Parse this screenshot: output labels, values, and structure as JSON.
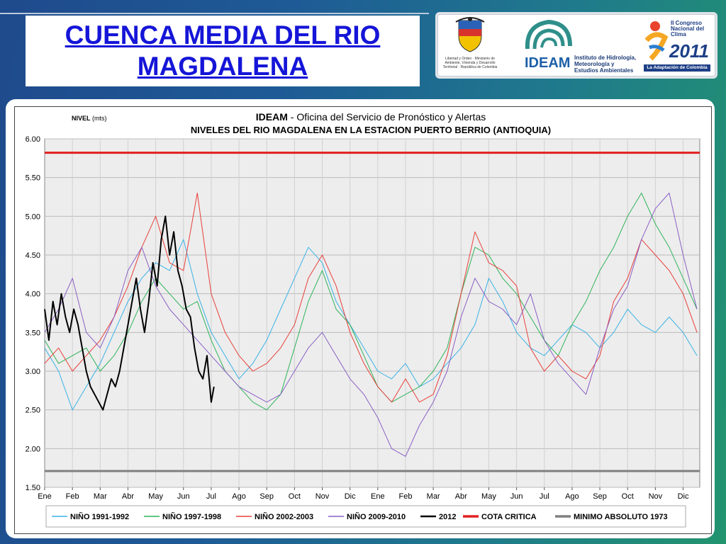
{
  "slide": {
    "title_line1": "CUENCA MEDIA DEL RIO",
    "title_line2": "MAGDALENA",
    "logo_minambiente_text": "Libertad y Orden · Ministerio de Ambiente, Vivienda y Desarrollo Territorial · República de Colombia",
    "logo_ideam_word": "IDEAM",
    "logo_ideam_desc": "Instituto de Hidrología, Meteorología y Estudios Ambientales",
    "logo_congreso_text": "II Congreso Nacional del Clima",
    "logo_congreso_year": "2011",
    "logo_congreso_ribbon": "La Adaptación de Colombia"
  },
  "chart_data": {
    "type": "line",
    "title_prefix": "IDEAM",
    "title_rest": " - Oficina del Servicio de Pronóstico y Alertas",
    "subtitle": "NIVELES DEL RIO MAGDALENA EN LA ESTACION PUERTO BERRIO (ANTIOQUIA)",
    "ylabel_main": "NIVEL",
    "ylabel_unit": " (mts)",
    "ylim": [
      1.5,
      6.0
    ],
    "yticks": [
      "6.00",
      "5.50",
      "5.00",
      "4.50",
      "4.00",
      "3.50",
      "3.00",
      "2.50",
      "2.00",
      "1.50"
    ],
    "x_months": [
      "Ene",
      "Feb",
      "Mar",
      "Abr",
      "May",
      "Jun",
      "Jul",
      "Ago",
      "Sep",
      "Oct",
      "Nov",
      "Dic",
      "Ene",
      "Feb",
      "Mar",
      "Abr",
      "May",
      "Jun",
      "Jul",
      "Ago",
      "Sep",
      "Oct",
      "Nov",
      "Dic"
    ],
    "x_range_months": [
      0,
      23.6
    ],
    "grid": true,
    "legend_position": "bottom",
    "reference_lines": [
      {
        "name": "COTA CRITICA",
        "value": 5.82,
        "color": "#e02020"
      },
      {
        "name": "MINIMO ABSOLUTO 1973",
        "value": 1.71,
        "color": "#808080"
      }
    ],
    "series": [
      {
        "name": "NIÑO 1991-1992",
        "color": "#3ab2e6",
        "width": 1,
        "x": [
          0,
          0.5,
          1,
          1.5,
          2,
          2.5,
          3,
          3.5,
          4,
          4.5,
          5,
          5.5,
          6,
          6.5,
          7,
          7.5,
          8,
          8.5,
          9,
          9.5,
          10,
          10.5,
          11,
          11.5,
          12,
          12.5,
          13,
          13.5,
          14,
          14.5,
          15,
          15.5,
          16,
          16.5,
          17,
          17.5,
          18,
          18.5,
          19,
          19.5,
          20,
          20.5,
          21,
          21.5,
          22,
          22.5,
          23,
          23.5
        ],
        "y": [
          3.3,
          3.0,
          2.5,
          2.8,
          3.1,
          3.5,
          3.9,
          4.2,
          4.4,
          4.3,
          4.7,
          4.0,
          3.5,
          3.2,
          2.9,
          3.1,
          3.4,
          3.8,
          4.2,
          4.6,
          4.4,
          3.9,
          3.6,
          3.3,
          3.0,
          2.9,
          3.1,
          2.8,
          2.9,
          3.1,
          3.3,
          3.6,
          4.2,
          3.9,
          3.5,
          3.3,
          3.2,
          3.4,
          3.6,
          3.5,
          3.3,
          3.5,
          3.8,
          3.6,
          3.5,
          3.7,
          3.5,
          3.2
        ]
      },
      {
        "name": "NIÑO 1997-1998",
        "color": "#2fb35a",
        "width": 1,
        "x": [
          0,
          0.5,
          1,
          1.5,
          2,
          2.5,
          3,
          3.5,
          4,
          4.5,
          5,
          5.5,
          6,
          6.5,
          7,
          7.5,
          8,
          8.5,
          9,
          9.5,
          10,
          10.5,
          11,
          11.5,
          12,
          12.5,
          13,
          13.5,
          14,
          14.5,
          15,
          15.5,
          16,
          16.5,
          17,
          17.5,
          18,
          18.5,
          19,
          19.5,
          20,
          20.5,
          21,
          21.5,
          22,
          22.5,
          23,
          23.5
        ],
        "y": [
          3.4,
          3.1,
          3.2,
          3.3,
          3.0,
          3.2,
          3.5,
          3.9,
          4.2,
          4.0,
          3.8,
          3.9,
          3.4,
          3.0,
          2.8,
          2.6,
          2.5,
          2.7,
          3.3,
          3.9,
          4.3,
          3.8,
          3.6,
          3.2,
          2.8,
          2.6,
          2.7,
          2.8,
          3.0,
          3.3,
          4.0,
          4.6,
          4.5,
          4.2,
          4.0,
          3.7,
          3.4,
          3.2,
          3.6,
          3.9,
          4.3,
          4.6,
          5.0,
          5.3,
          4.9,
          4.6,
          4.2,
          3.8
        ]
      },
      {
        "name": "NIÑO 2002-2003",
        "color": "#e8403a",
        "width": 1,
        "x": [
          0,
          0.5,
          1,
          1.5,
          2,
          2.5,
          3,
          3.5,
          4,
          4.5,
          5,
          5.5,
          6,
          6.5,
          7,
          7.5,
          8,
          8.5,
          9,
          9.5,
          10,
          10.5,
          11,
          11.5,
          12,
          12.5,
          13,
          13.5,
          14,
          14.5,
          15,
          15.5,
          16,
          16.5,
          17,
          17.5,
          18,
          18.5,
          19,
          19.5,
          20,
          20.5,
          21,
          21.5,
          22,
          22.5,
          23,
          23.5
        ],
        "y": [
          3.1,
          3.3,
          3.0,
          3.2,
          3.4,
          3.7,
          4.1,
          4.6,
          5.0,
          4.4,
          4.3,
          5.3,
          4.0,
          3.5,
          3.2,
          3.0,
          3.1,
          3.3,
          3.6,
          4.2,
          4.5,
          4.1,
          3.5,
          3.1,
          2.8,
          2.6,
          2.9,
          2.6,
          2.7,
          3.2,
          4.0,
          4.8,
          4.4,
          4.3,
          4.1,
          3.3,
          3.0,
          3.2,
          3.0,
          2.9,
          3.2,
          3.9,
          4.2,
          4.7,
          4.5,
          4.3,
          4.0,
          3.5
        ]
      },
      {
        "name": "NIÑO 2009-2010",
        "color": "#8a5fc4",
        "width": 1,
        "x": [
          0,
          0.5,
          1,
          1.5,
          2,
          2.5,
          3,
          3.5,
          4,
          4.5,
          5,
          5.5,
          6,
          6.5,
          7,
          7.5,
          8,
          8.5,
          9,
          9.5,
          10,
          10.5,
          11,
          11.5,
          12,
          12.5,
          13,
          13.5,
          14,
          14.5,
          15,
          15.5,
          16,
          16.5,
          17,
          17.5,
          18,
          18.5,
          19,
          19.5,
          20,
          20.5,
          21,
          21.5,
          22,
          22.5,
          23,
          23.5
        ],
        "y": [
          3.5,
          3.8,
          4.2,
          3.5,
          3.3,
          3.7,
          4.3,
          4.6,
          4.1,
          3.8,
          3.6,
          3.4,
          3.2,
          3.0,
          2.8,
          2.7,
          2.6,
          2.7,
          3.0,
          3.3,
          3.5,
          3.2,
          2.9,
          2.7,
          2.4,
          2.0,
          1.9,
          2.3,
          2.6,
          3.0,
          3.7,
          4.2,
          3.9,
          3.8,
          3.6,
          4.0,
          3.4,
          3.1,
          2.9,
          2.7,
          3.3,
          3.8,
          4.1,
          4.7,
          5.1,
          5.3,
          4.5,
          3.8
        ]
      },
      {
        "name": "2012",
        "color": "#000000",
        "width": 2,
        "x": [
          0,
          0.15,
          0.3,
          0.45,
          0.6,
          0.75,
          0.9,
          1.05,
          1.2,
          1.35,
          1.5,
          1.65,
          1.8,
          1.95,
          2.1,
          2.25,
          2.4,
          2.55,
          2.7,
          2.85,
          3.0,
          3.15,
          3.3,
          3.45,
          3.6,
          3.75,
          3.9,
          4.05,
          4.2,
          4.35,
          4.5,
          4.65,
          4.8,
          4.95,
          5.1,
          5.25,
          5.4,
          5.55,
          5.7,
          5.85,
          6.0,
          6.1
        ],
        "y": [
          3.8,
          3.4,
          3.9,
          3.6,
          4.0,
          3.7,
          3.5,
          3.8,
          3.6,
          3.3,
          3.0,
          2.8,
          2.7,
          2.6,
          2.5,
          2.7,
          2.9,
          2.8,
          3.0,
          3.3,
          3.6,
          3.9,
          4.2,
          3.8,
          3.5,
          3.9,
          4.4,
          4.1,
          4.7,
          5.0,
          4.5,
          4.8,
          4.3,
          4.1,
          3.8,
          3.7,
          3.3,
          3.0,
          2.9,
          3.2,
          2.6,
          2.8
        ]
      }
    ]
  }
}
